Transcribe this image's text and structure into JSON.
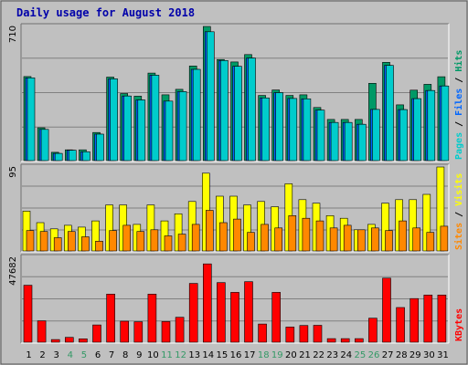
{
  "chart_data": {
    "type": "bar",
    "title": "Daily usage for August 2018",
    "categories": [
      "1",
      "2",
      "3",
      "4",
      "5",
      "6",
      "7",
      "8",
      "9",
      "10",
      "11",
      "12",
      "13",
      "14",
      "15",
      "16",
      "17",
      "18",
      "19",
      "20",
      "21",
      "22",
      "23",
      "24",
      "25",
      "26",
      "27",
      "28",
      "29",
      "30",
      "31"
    ],
    "weekend_days": [
      "4",
      "5",
      "11",
      "12",
      "18",
      "19",
      "25",
      "26"
    ],
    "weekend_color": "#339966",
    "panels": [
      {
        "name": "pages_files_hits",
        "y_max_label": "710",
        "ylim": [
          0,
          710
        ],
        "side_labels": [
          {
            "text": "Pages",
            "color": "#00cccc"
          },
          {
            "text": " / ",
            "color": "#000000"
          },
          {
            "text": "Files",
            "color": "#0066ff"
          },
          {
            "text": " / ",
            "color": "#000000"
          },
          {
            "text": "Hits",
            "color": "#009966"
          }
        ],
        "series": [
          {
            "name": "Hits",
            "color": "#009966",
            "values": [
              445,
              174,
              44,
              57,
              57,
              149,
              442,
              355,
              341,
              463,
              348,
              377,
              501,
              710,
              535,
              522,
              561,
              345,
              374,
              345,
              348,
              281,
              218,
              218,
              218,
              409,
              520,
              295,
              373,
              404,
              444
            ]
          },
          {
            "name": "Files",
            "color": "#0066ff",
            "values": [
              438,
              165,
              38,
              55,
              47,
              140,
              433,
              342,
              321,
              452,
              315,
              365,
              483,
              682,
              530,
              499,
              543,
              332,
              360,
              329,
              327,
              267,
              202,
              202,
              192,
              271,
              504,
              270,
              328,
              371,
              395
            ]
          },
          {
            "name": "Pages",
            "color": "#00cccc",
            "values": [
              438,
              165,
              38,
              55,
              47,
              140,
              433,
              342,
              321,
              452,
              315,
              365,
              483,
              682,
              530,
              499,
              543,
              332,
              360,
              329,
              327,
              267,
              202,
              202,
              192,
              271,
              504,
              270,
              328,
              371,
              395
            ]
          }
        ]
      },
      {
        "name": "visits_sites",
        "y_max_label": "95",
        "ylim": [
          0,
          95
        ],
        "side_labels": [
          {
            "text": "Sites",
            "color": "#ff8800"
          },
          {
            "text": " / ",
            "color": "#000000"
          },
          {
            "text": "Visits",
            "color": "#ffff00"
          }
        ],
        "series": [
          {
            "name": "Visits",
            "color": "#ffff00",
            "values": [
              45,
              32,
              25,
              29,
              27,
              34,
              52,
              52,
              30,
              52,
              34,
              42,
              56,
              88,
              62,
              62,
              52,
              56,
              50,
              76,
              58,
              54,
              40,
              37,
              24,
              30,
              54,
              58,
              58,
              64,
              95
            ]
          },
          {
            "name": "Sites",
            "color": "#ff8800",
            "values": [
              23,
              22,
              15,
              22,
              16,
              11,
              23,
              29,
              22,
              24,
              17,
              19,
              30,
              46,
              32,
              36,
              21,
              30,
              26,
              40,
              37,
              34,
              26,
              29,
              24,
              26,
              23,
              34,
              26,
              21,
              28
            ]
          }
        ]
      },
      {
        "name": "kbytes",
        "y_max_label": "47682",
        "ylim": [
          0,
          47682
        ],
        "side_labels": [
          {
            "text": "KBytes",
            "color": "#ff0000"
          }
        ],
        "series": [
          {
            "name": "KBytes",
            "color": "#ff0000",
            "values": [
              32000,
              12000,
              1500,
              2700,
              1900,
              9700,
              27000,
              11800,
              11500,
              27000,
              11600,
              14000,
              33000,
              44000,
              33500,
              28000,
              34000,
              10200,
              28000,
              8500,
              9400,
              9500,
              2000,
              2000,
              2000,
              13500,
              36000,
              19500,
              24500,
              26500,
              26500
            ]
          }
        ]
      }
    ]
  }
}
